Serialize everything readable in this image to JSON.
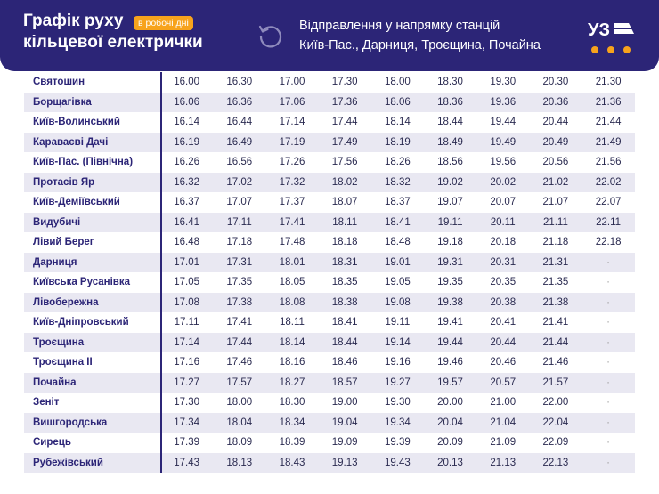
{
  "header": {
    "title_line1": "Графік руху",
    "title_line2": "кільцевої електрички",
    "badge": "в робочі дні",
    "direction_line1": "Відправлення у напрямку станцій",
    "direction_line2": "Київ-Пас., Дарниця, Троєщина, Почайна",
    "logo_text": "УЗ",
    "refresh_icon": "circular-arrow-icon"
  },
  "colors": {
    "primary": "#2c2577",
    "accent": "#f7a31c",
    "stripe": "#e9e8f2"
  },
  "schedule": [
    {
      "station": "Святошин",
      "times": [
        "16.00",
        "16.30",
        "17.00",
        "17.30",
        "18.00",
        "18.30",
        "19.30",
        "20.30",
        "21.30"
      ]
    },
    {
      "station": "Борщагівка",
      "times": [
        "16.06",
        "16.36",
        "17.06",
        "17.36",
        "18.06",
        "18.36",
        "19.36",
        "20.36",
        "21.36"
      ]
    },
    {
      "station": "Київ-Волинський",
      "times": [
        "16.14",
        "16.44",
        "17.14",
        "17.44",
        "18.14",
        "18.44",
        "19.44",
        "20.44",
        "21.44"
      ]
    },
    {
      "station": "Караваєві Дачі",
      "times": [
        "16.19",
        "16.49",
        "17.19",
        "17.49",
        "18.19",
        "18.49",
        "19.49",
        "20.49",
        "21.49"
      ]
    },
    {
      "station": "Київ-Пас. (Північна)",
      "times": [
        "16.26",
        "16.56",
        "17.26",
        "17.56",
        "18.26",
        "18.56",
        "19.56",
        "20.56",
        "21.56"
      ]
    },
    {
      "station": "Протасів Яр",
      "times": [
        "16.32",
        "17.02",
        "17.32",
        "18.02",
        "18.32",
        "19.02",
        "20.02",
        "21.02",
        "22.02"
      ]
    },
    {
      "station": "Київ-Деміївський",
      "times": [
        "16.37",
        "17.07",
        "17.37",
        "18.07",
        "18.37",
        "19.07",
        "20.07",
        "21.07",
        "22.07"
      ]
    },
    {
      "station": "Видубичі",
      "times": [
        "16.41",
        "17.11",
        "17.41",
        "18.11",
        "18.41",
        "19.11",
        "20.11",
        "21.11",
        "22.11"
      ]
    },
    {
      "station": "Лівий Берег",
      "times": [
        "16.48",
        "17.18",
        "17.48",
        "18.18",
        "18.48",
        "19.18",
        "20.18",
        "21.18",
        "22.18"
      ]
    },
    {
      "station": "Дарниця",
      "times": [
        "17.01",
        "17.31",
        "18.01",
        "18.31",
        "19.01",
        "19.31",
        "20.31",
        "21.31",
        "·"
      ]
    },
    {
      "station": "Київська Русанівка",
      "times": [
        "17.05",
        "17.35",
        "18.05",
        "18.35",
        "19.05",
        "19.35",
        "20.35",
        "21.35",
        "·"
      ]
    },
    {
      "station": "Лівобережна",
      "times": [
        "17.08",
        "17.38",
        "18.08",
        "18.38",
        "19.08",
        "19.38",
        "20.38",
        "21.38",
        "·"
      ]
    },
    {
      "station": "Київ-Дніпровський",
      "times": [
        "17.11",
        "17.41",
        "18.11",
        "18.41",
        "19.11",
        "19.41",
        "20.41",
        "21.41",
        "·"
      ]
    },
    {
      "station": "Троєщина",
      "times": [
        "17.14",
        "17.44",
        "18.14",
        "18.44",
        "19.14",
        "19.44",
        "20.44",
        "21.44",
        "·"
      ]
    },
    {
      "station": "Троєщина II",
      "times": [
        "17.16",
        "17.46",
        "18.16",
        "18.46",
        "19.16",
        "19.46",
        "20.46",
        "21.46",
        "·"
      ]
    },
    {
      "station": "Почайна",
      "times": [
        "17.27",
        "17.57",
        "18.27",
        "18.57",
        "19.27",
        "19.57",
        "20.57",
        "21.57",
        "·"
      ]
    },
    {
      "station": "Зеніт",
      "times": [
        "17.30",
        "18.00",
        "18.30",
        "19.00",
        "19.30",
        "20.00",
        "21.00",
        "22.00",
        "·"
      ]
    },
    {
      "station": "Вишгородська",
      "times": [
        "17.34",
        "18.04",
        "18.34",
        "19.04",
        "19.34",
        "20.04",
        "21.04",
        "22.04",
        "·"
      ]
    },
    {
      "station": "Сирець",
      "times": [
        "17.39",
        "18.09",
        "18.39",
        "19.09",
        "19.39",
        "20.09",
        "21.09",
        "22.09",
        "·"
      ]
    },
    {
      "station": "Рубежівський",
      "times": [
        "17.43",
        "18.13",
        "18.43",
        "19.13",
        "19.43",
        "20.13",
        "21.13",
        "22.13",
        "·"
      ]
    }
  ]
}
